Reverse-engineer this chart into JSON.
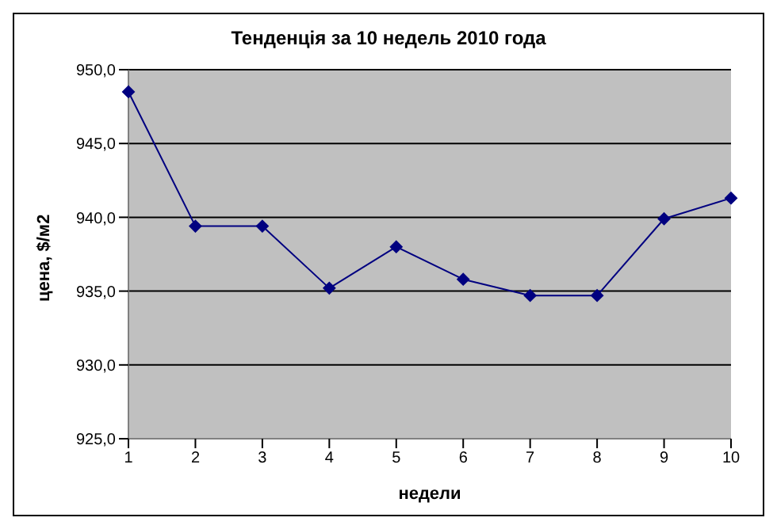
{
  "chart_data": {
    "type": "line",
    "title": "Тенденція за 10 недель 2010 года",
    "xlabel": "недели",
    "ylabel": "цена, $/м2",
    "categories": [
      "1",
      "2",
      "3",
      "4",
      "5",
      "6",
      "7",
      "8",
      "9",
      "10"
    ],
    "series": [
      {
        "color": "#000080",
        "values": [
          948.5,
          939.4,
          939.4,
          935.2,
          938.0,
          935.8,
          934.7,
          934.7,
          939.9,
          941.3
        ]
      }
    ],
    "ylim": [
      925,
      950
    ],
    "yticks": [
      {
        "value": 925,
        "label": "925,0"
      },
      {
        "value": 930,
        "label": "930,0"
      },
      {
        "value": 935,
        "label": "935,0"
      },
      {
        "value": 940,
        "label": "940,0"
      },
      {
        "value": 945,
        "label": "945,0"
      },
      {
        "value": 950,
        "label": "950,0"
      }
    ],
    "grid": "y",
    "legend": false,
    "marker": "diamond",
    "line_style": "solid"
  }
}
